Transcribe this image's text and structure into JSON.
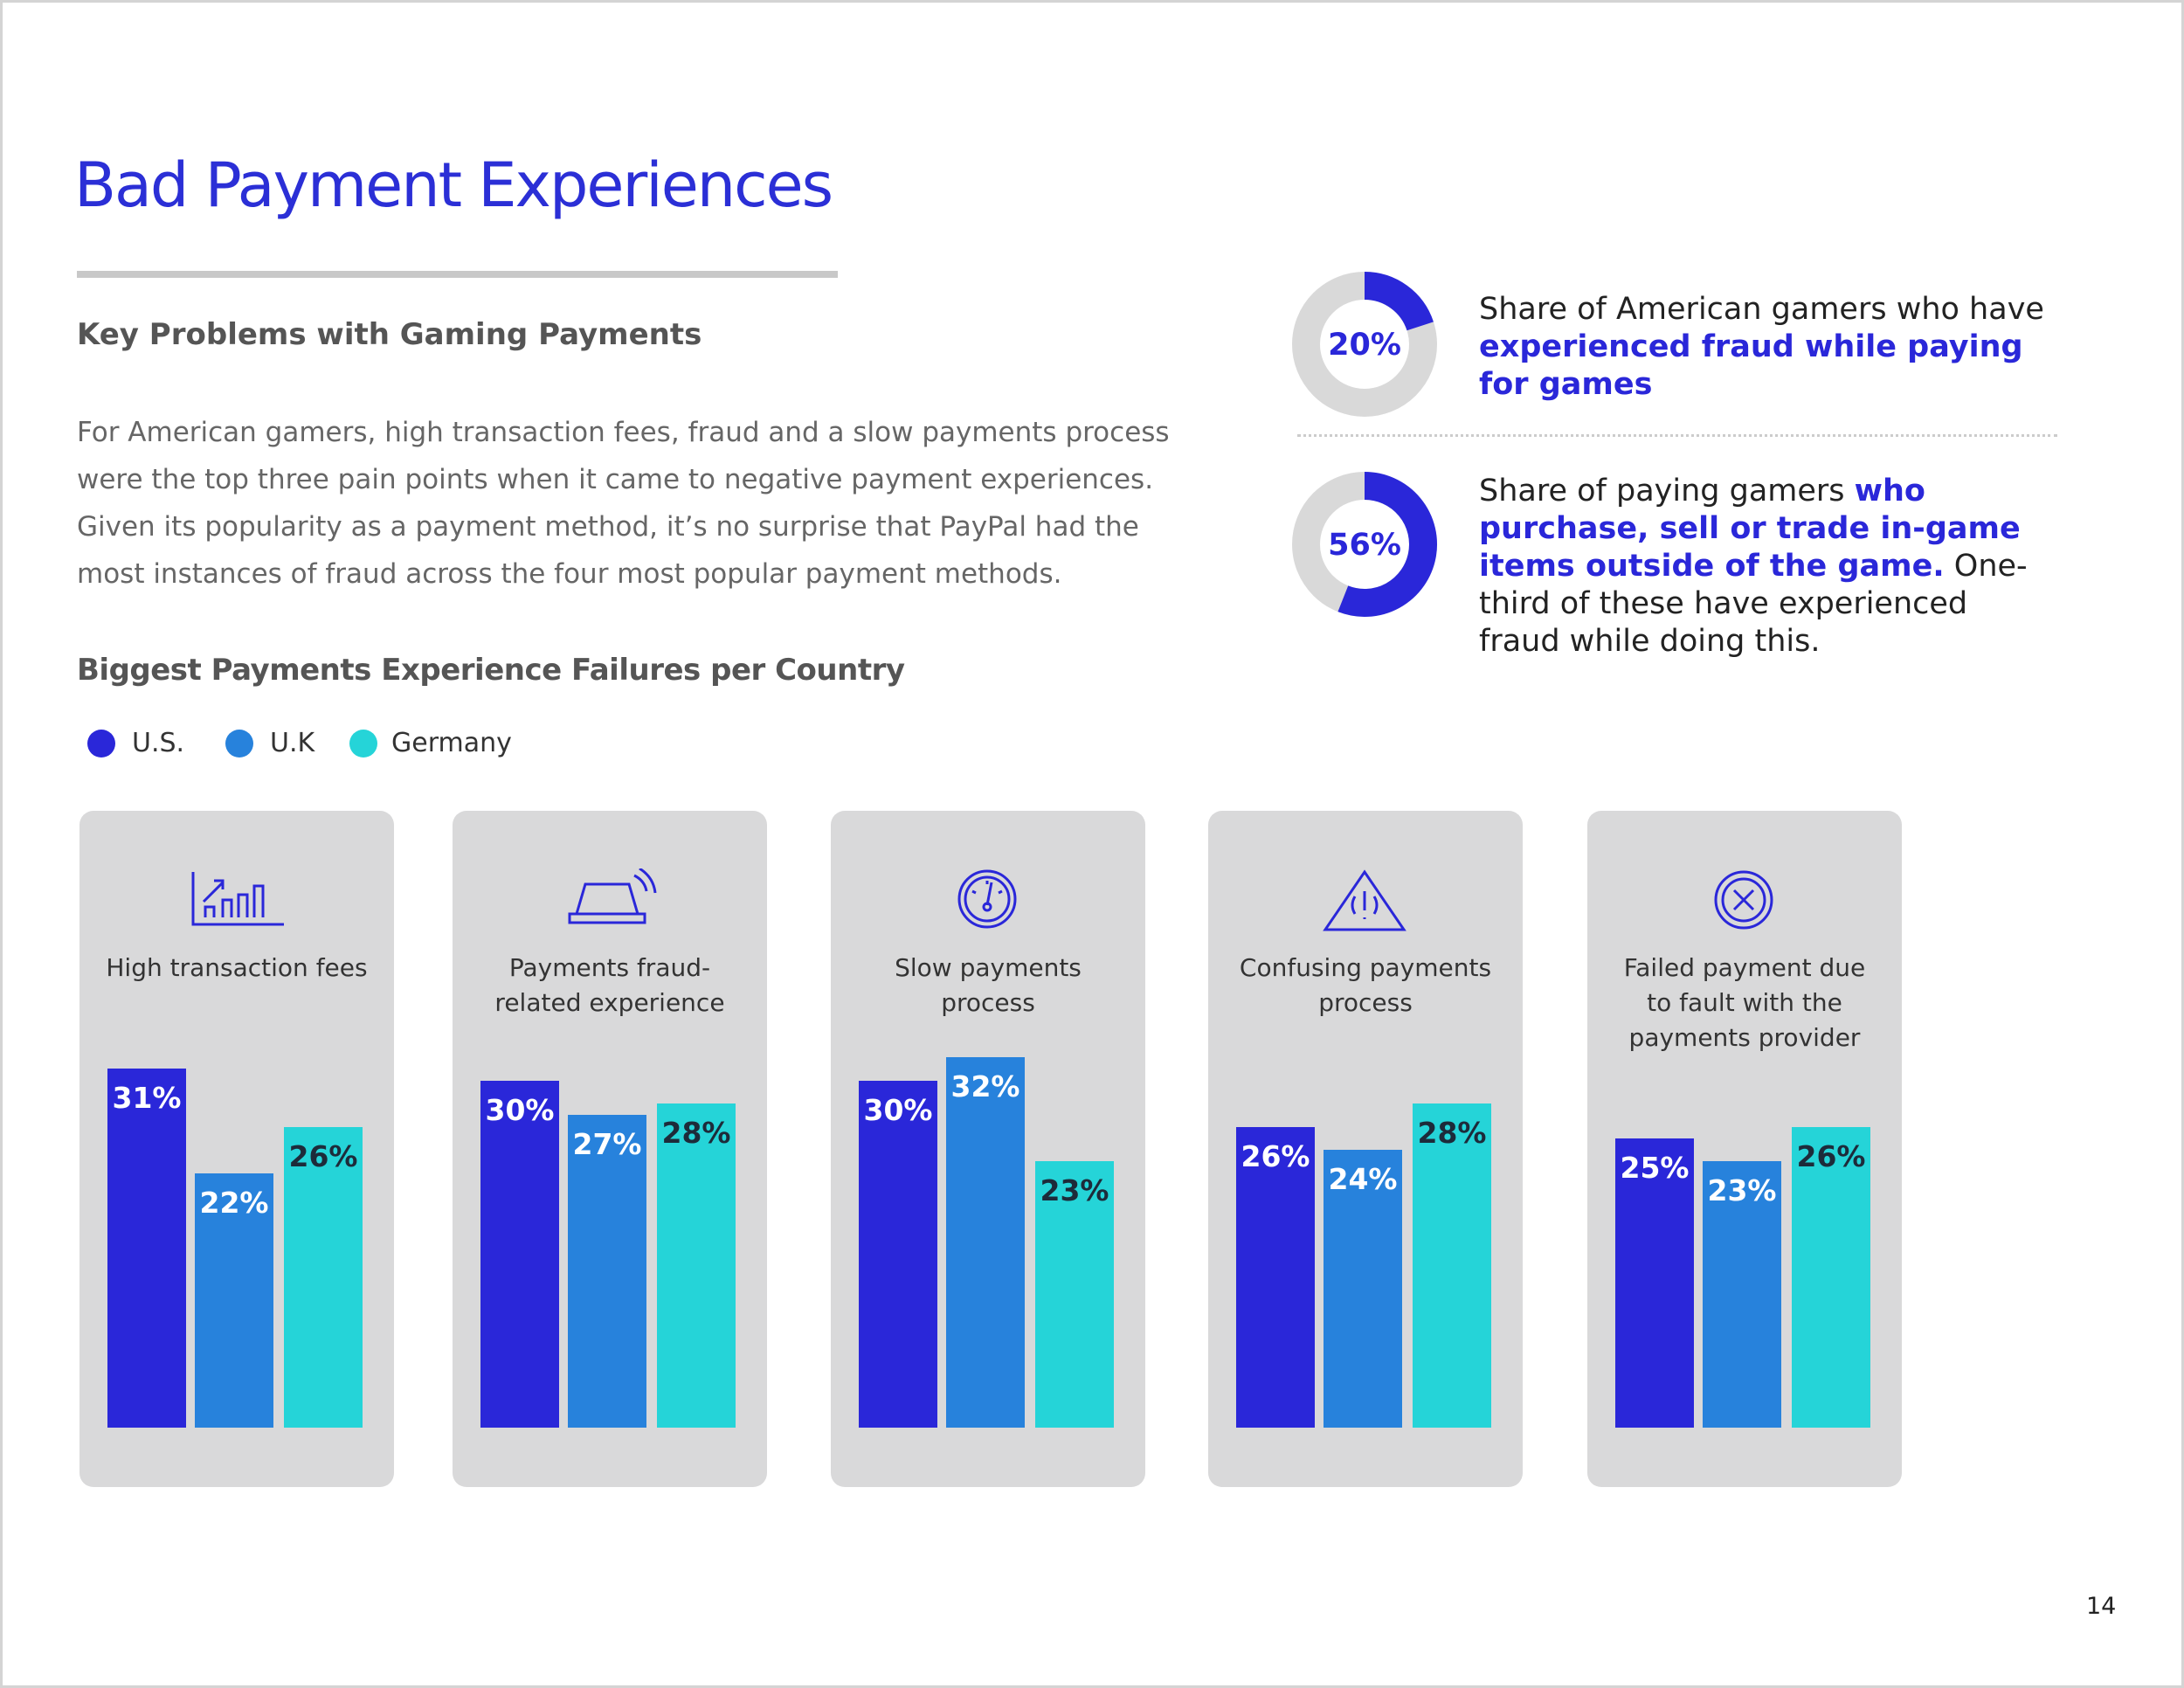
{
  "header": {
    "title": "Bad Payment Experiences",
    "subtitle": "Key Problems with Gaming Payments",
    "body": "For American gamers, high transaction fees, fraud and a slow payments process were the top three pain points when it came to negative payment experiences. Given its popularity as a payment method, it’s no surprise that PayPal had the most instances of fraud across the four most popular payment methods."
  },
  "chart_data": [
    {
      "type": "bar",
      "title": "Biggest Payments Experience Failures per Country",
      "categories": [
        "High transaction fees",
        "Payments fraud-related experience",
        "Slow payments process",
        "Confusing payments process",
        "Failed payment due to fault with the payments provider"
      ],
      "series": [
        {
          "name": "U.S.",
          "color": "#2a27d9",
          "values": [
            31,
            30,
            30,
            26,
            25
          ],
          "value_labels": [
            "31%",
            "30%",
            "30%",
            "26%",
            "25%"
          ]
        },
        {
          "name": "U.K",
          "color": "#2782dc",
          "values": [
            22,
            27,
            32,
            24,
            23
          ],
          "value_labels": [
            "22%",
            "27%",
            "32%",
            "24%",
            "23%"
          ]
        },
        {
          "name": "Germany",
          "color": "#25d4d8",
          "values": [
            26,
            28,
            23,
            28,
            26
          ],
          "value_labels": [
            "26%",
            "28%",
            "23%",
            "28%",
            "26%"
          ]
        }
      ]
    },
    {
      "type": "donut",
      "values": [
        20
      ],
      "value_labels": [
        "20%"
      ],
      "color": "#2a27d9",
      "track_color": "#d9d9d9",
      "description": [
        {
          "text": "Share of American gamers who have ",
          "emphasis": false
        },
        {
          "text": "experienced fraud while paying for games",
          "emphasis": true
        }
      ]
    },
    {
      "type": "donut",
      "values": [
        56
      ],
      "value_labels": [
        "56%"
      ],
      "color": "#2a27d9",
      "track_color": "#d9d9d9",
      "description": [
        {
          "text": "Share of paying gamers ",
          "emphasis": false
        },
        {
          "text": "who purchase, sell or trade in-game items outside of the game.",
          "emphasis": true
        },
        {
          "text": " One-third of these have experienced fraud while doing this.",
          "emphasis": false
        }
      ]
    }
  ],
  "page_number": "14"
}
